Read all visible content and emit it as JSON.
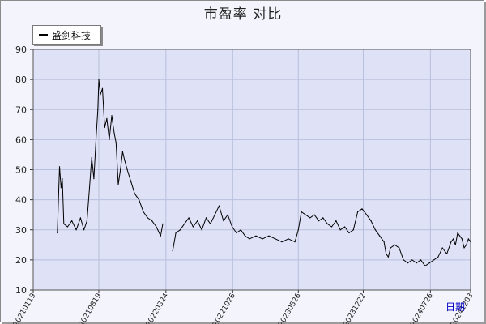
{
  "title": "市盈率  对比",
  "legend": {
    "label": "盛剑科技"
  },
  "colors": {
    "plot_bg": "#dfe2f7",
    "grid": "#b8bfdc",
    "line": "#000000",
    "xlabel": "#0000c8"
  },
  "chart_data": {
    "type": "line",
    "title": "市盈率  对比",
    "xlabel": "日期",
    "ylabel": "",
    "ylim": [
      10,
      90
    ],
    "yticks": [
      10,
      20,
      30,
      40,
      50,
      60,
      70,
      80,
      90
    ],
    "xlim": [
      "2021-01-19",
      "2024-12-03"
    ],
    "xticks": [
      "20210119",
      "20210819",
      "20220324",
      "20221026",
      "20230526",
      "20231222",
      "20240726",
      "20241203"
    ],
    "grid": true,
    "legend_position": "top-left",
    "series": [
      {
        "name": "盛剑科技",
        "points": [
          [
            "2021-04-07",
            29
          ],
          [
            "2021-04-14",
            51
          ],
          [
            "2021-04-19",
            44
          ],
          [
            "2021-04-23",
            47
          ],
          [
            "2021-04-28",
            32
          ],
          [
            "2021-05-10",
            31
          ],
          [
            "2021-05-24",
            33
          ],
          [
            "2021-06-07",
            30
          ],
          [
            "2021-06-21",
            34
          ],
          [
            "2021-07-02",
            30
          ],
          [
            "2021-07-12",
            33
          ],
          [
            "2021-07-20",
            44
          ],
          [
            "2021-07-27",
            54
          ],
          [
            "2021-08-03",
            47
          ],
          [
            "2021-08-10",
            60
          ],
          [
            "2021-08-16",
            70
          ],
          [
            "2021-08-19",
            80
          ],
          [
            "2021-08-24",
            75
          ],
          [
            "2021-08-31",
            77
          ],
          [
            "2021-09-07",
            64
          ],
          [
            "2021-09-14",
            67
          ],
          [
            "2021-09-22",
            60
          ],
          [
            "2021-09-30",
            68
          ],
          [
            "2021-10-08",
            62
          ],
          [
            "2021-10-14",
            59
          ],
          [
            "2021-10-21",
            45
          ],
          [
            "2021-10-28",
            50
          ],
          [
            "2021-11-04",
            56
          ],
          [
            "2021-11-11",
            53
          ],
          [
            "2021-11-19",
            50
          ],
          [
            "2021-12-01",
            46
          ],
          [
            "2021-12-13",
            42
          ],
          [
            "2021-12-27",
            40
          ],
          [
            "2022-01-10",
            36
          ],
          [
            "2022-01-24",
            34
          ],
          [
            "2022-02-07",
            33
          ],
          [
            "2022-02-21",
            31
          ],
          [
            "2022-03-07",
            28
          ],
          [
            "2022-03-14",
            32
          ],
          [
            "2022-04-15",
            23
          ],
          [
            "2022-04-25",
            29
          ],
          [
            "2022-05-09",
            30
          ],
          [
            "2022-05-23",
            32
          ],
          [
            "2022-06-06",
            34
          ],
          [
            "2022-06-20",
            31
          ],
          [
            "2022-07-04",
            33
          ],
          [
            "2022-07-18",
            30
          ],
          [
            "2022-08-01",
            34
          ],
          [
            "2022-08-15",
            32
          ],
          [
            "2022-08-29",
            35
          ],
          [
            "2022-09-12",
            38
          ],
          [
            "2022-09-26",
            33
          ],
          [
            "2022-10-10",
            35
          ],
          [
            "2022-10-24",
            31
          ],
          [
            "2022-11-07",
            29
          ],
          [
            "2022-11-21",
            30
          ],
          [
            "2022-12-05",
            28
          ],
          [
            "2022-12-19",
            27
          ],
          [
            "2023-01-09",
            28
          ],
          [
            "2023-01-30",
            27
          ],
          [
            "2023-02-20",
            28
          ],
          [
            "2023-03-13",
            27
          ],
          [
            "2023-04-03",
            26
          ],
          [
            "2023-04-24",
            27
          ],
          [
            "2023-05-15",
            26
          ],
          [
            "2023-05-26",
            30
          ],
          [
            "2023-06-05",
            36
          ],
          [
            "2023-06-19",
            35
          ],
          [
            "2023-07-03",
            34
          ],
          [
            "2023-07-17",
            35
          ],
          [
            "2023-07-31",
            33
          ],
          [
            "2023-08-14",
            34
          ],
          [
            "2023-08-28",
            32
          ],
          [
            "2023-09-11",
            31
          ],
          [
            "2023-09-25",
            33
          ],
          [
            "2023-10-09",
            30
          ],
          [
            "2023-10-23",
            31
          ],
          [
            "2023-11-06",
            29
          ],
          [
            "2023-11-20",
            30
          ],
          [
            "2023-12-04",
            36
          ],
          [
            "2023-12-18",
            37
          ],
          [
            "2024-01-02",
            35
          ],
          [
            "2024-01-16",
            33
          ],
          [
            "2024-01-30",
            30
          ],
          [
            "2024-02-13",
            28
          ],
          [
            "2024-02-27",
            26
          ],
          [
            "2024-03-05",
            22
          ],
          [
            "2024-03-12",
            21
          ],
          [
            "2024-03-19",
            24
          ],
          [
            "2024-04-02",
            25
          ],
          [
            "2024-04-16",
            24
          ],
          [
            "2024-04-30",
            20
          ],
          [
            "2024-05-14",
            19
          ],
          [
            "2024-05-28",
            20
          ],
          [
            "2024-06-11",
            19
          ],
          [
            "2024-06-25",
            20
          ],
          [
            "2024-07-09",
            18
          ],
          [
            "2024-07-23",
            19
          ],
          [
            "2024-08-06",
            20
          ],
          [
            "2024-08-20",
            21
          ],
          [
            "2024-09-03",
            24
          ],
          [
            "2024-09-17",
            22
          ],
          [
            "2024-10-01",
            26
          ],
          [
            "2024-10-08",
            27
          ],
          [
            "2024-10-15",
            25
          ],
          [
            "2024-10-22",
            29
          ],
          [
            "2024-10-29",
            28
          ],
          [
            "2024-11-05",
            27
          ],
          [
            "2024-11-12",
            24
          ],
          [
            "2024-11-19",
            25
          ],
          [
            "2024-11-26",
            27
          ],
          [
            "2024-12-03",
            26
          ]
        ]
      }
    ]
  }
}
